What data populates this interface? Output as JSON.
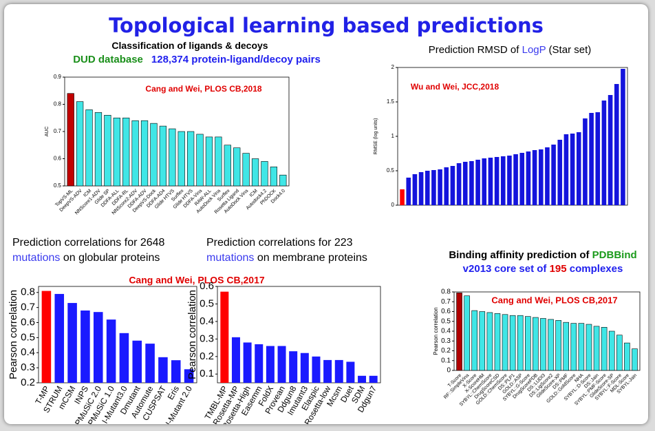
{
  "title": "Topological learning based predictions",
  "chart_data": [
    {
      "type": "bar",
      "title": [
        {
          "text": "Classification of ligands & decoys",
          "color": "#000000"
        }
      ],
      "subtitle": [
        {
          "text": "DUD database",
          "color": "#1a8f1a"
        },
        {
          "text": "128,374 protein-ligand/decoy pairs",
          "color": "#2020ee"
        }
      ],
      "annotation": "Cang and Wei, PLOS CB,2018",
      "ylabel": "AUC",
      "categories": [
        "TopVS-ML",
        "DeepVS-ADV",
        "ICM",
        "NNScore1-ADV",
        "Glide SP",
        "DDFA-ALL",
        "DDFA-RL",
        "NNScore2-ADV",
        "DDFA-ADV",
        "DeepVS-Dock",
        "DDFA-AD4",
        "Glide HTVS",
        "Surflex",
        "Glide HTVS",
        "DDFA-Vina",
        "RAW-ALL",
        "AutoDock Vina",
        "Surflex",
        "Rosetta Ligand",
        "AutoDock Vina",
        "ICM",
        "Autodock4.2",
        "PhDOCK",
        "Dock4.0"
      ],
      "values": [
        0.84,
        0.81,
        0.78,
        0.77,
        0.76,
        0.75,
        0.75,
        0.74,
        0.74,
        0.73,
        0.72,
        0.71,
        0.7,
        0.7,
        0.69,
        0.68,
        0.68,
        0.65,
        0.64,
        0.62,
        0.6,
        0.59,
        0.57,
        0.54
      ],
      "ylim": [
        0.5,
        0.9
      ],
      "yticks": [
        0.5,
        0.6,
        0.7,
        0.8,
        0.9
      ],
      "color": "#40e6e6",
      "first_color": "#c00000",
      "edge_color": "#000000"
    },
    {
      "type": "bar",
      "title": [
        {
          "text": "Prediction RMSD of ",
          "color": "#000000"
        },
        {
          "text": "LogP",
          "color": "#3a3aee"
        },
        {
          "text": " (Star set)",
          "color": "#000000"
        }
      ],
      "annotation": "Wu and Wei, JCC,2018",
      "ylabel": "RMSE (log units)",
      "categories": [
        null,
        null,
        null,
        null,
        null,
        null,
        null,
        null,
        null,
        null,
        null,
        null,
        null,
        null,
        null,
        null,
        null,
        null,
        null,
        null,
        null,
        null,
        null,
        null,
        null,
        null,
        null,
        null,
        null,
        null,
        null,
        null,
        null,
        null,
        null,
        null
      ],
      "values": [
        0.23,
        0.4,
        0.45,
        0.48,
        0.5,
        0.51,
        0.52,
        0.55,
        0.57,
        0.61,
        0.63,
        0.64,
        0.66,
        0.68,
        0.69,
        0.7,
        0.71,
        0.72,
        0.74,
        0.76,
        0.78,
        0.8,
        0.81,
        0.84,
        0.88,
        0.95,
        1.03,
        1.04,
        1.06,
        1.26,
        1.34,
        1.35,
        1.52,
        1.6,
        1.76,
        1.98
      ],
      "ylim": [
        0,
        2
      ],
      "yticks": [
        0,
        0.5,
        1,
        1.5,
        2
      ],
      "color": "#1414dc",
      "first_color": "#ff0000",
      "edge_color": null
    },
    {
      "type": "bar",
      "title": [
        {
          "text": "Prediction correlations for 2648 ",
          "color": "#000000"
        },
        {
          "text": "mutations",
          "color": "#3a3aee"
        },
        {
          "text": " on globular proteins",
          "color": "#000000"
        }
      ],
      "annotation": "Cang and Wei, PLOS CB,2017",
      "ylabel": "Pearson correlation",
      "categories": [
        "T-MP",
        "STRUM",
        "mCSM",
        "INPS",
        "PoPMuSiC 2.0",
        "PoPMuSiC 1.0",
        "I-Mutant3.0",
        "Dmutant",
        "Automute",
        "CUSPSAT",
        "Eris",
        "I-Mutant 2.0"
      ],
      "values": [
        0.81,
        0.79,
        0.73,
        0.68,
        0.67,
        0.62,
        0.53,
        0.48,
        0.46,
        0.37,
        0.35,
        0.29
      ],
      "ylim": [
        0.2,
        0.84
      ],
      "yticks": [
        0.2,
        0.3,
        0.4,
        0.5,
        0.6,
        0.7,
        0.8
      ],
      "color": "#1a1aff",
      "first_color": "#ff0000",
      "edge_color": null
    },
    {
      "type": "bar",
      "title": [
        {
          "text": "Prediction correlations for 223 ",
          "color": "#000000"
        },
        {
          "text": "mutations",
          "color": "#3a3aee"
        },
        {
          "text": " on membrane proteins",
          "color": "#000000"
        }
      ],
      "ylabel": "Pearson correlation",
      "categories": [
        "TMBL-MP",
        "Rosetta-MP",
        "Rosetta-High",
        "Easemm",
        "FoldX",
        "Provean",
        "Ddgun8",
        "Imutant3",
        "Elaspic",
        "Rosetta-low",
        "Mcsm",
        "Duet",
        "SDM",
        "Ddgun7"
      ],
      "values": [
        0.57,
        0.31,
        0.28,
        0.27,
        0.26,
        0.26,
        0.23,
        0.22,
        0.2,
        0.18,
        0.18,
        0.17,
        0.09,
        0.09
      ],
      "ylim": [
        0.05,
        0.6
      ],
      "yticks": [
        0.1,
        0.2,
        0.3,
        0.4,
        0.5,
        0.6
      ],
      "color": "#1a1aff",
      "first_color": "#ff0000",
      "edge_color": null
    },
    {
      "type": "bar",
      "title": [
        {
          "text": "Binding affinity prediction of ",
          "color": "#000000"
        },
        {
          "text": "PDBBind",
          "color": "#1a9a1a"
        },
        {
          "text": " v2013 core set of ",
          "color": "#2020ee"
        },
        {
          "text": "195",
          "color": "#e00000"
        },
        {
          "text": " complexes",
          "color": "#2020ee"
        }
      ],
      "annotation": "Cang and Wei, PLOS CB,2017",
      "ylabel": "Pearson correlation",
      "categories": [
        "T-Score",
        "RF::SimpleVina",
        "X-Score",
        "X-ScoreHM",
        "SYBYL::ChemScore",
        "DrugScoreCSD",
        "GOLD::ChemScore",
        "DS::PLP1",
        "GOLD::ASP",
        "SYBYL::G-Score",
        "DrugScorePDB",
        "DS::LUDI3",
        "DS::LigScore2",
        "GlideScore-XP",
        "DS::PMF",
        "GOLD::GoldScore",
        "NHA",
        "SYBYL::D-Score",
        "DS::Jain",
        "SYBYL::PMF-Score",
        "GlideScore-SP",
        "SYBYL::F-Score",
        "MDL-Score",
        "SYBYL-Jain"
      ],
      "values": [
        0.79,
        0.76,
        0.61,
        0.6,
        0.59,
        0.58,
        0.57,
        0.56,
        0.56,
        0.55,
        0.54,
        0.53,
        0.52,
        0.51,
        0.49,
        0.48,
        0.48,
        0.47,
        0.45,
        0.44,
        0.4,
        0.36,
        0.28,
        0.22
      ],
      "ylim": [
        0,
        0.8
      ],
      "yticks": [
        0,
        0.1,
        0.2,
        0.3,
        0.4,
        0.5,
        0.6,
        0.7,
        0.8
      ],
      "color": "#40e6e6",
      "first_color": "#b00000",
      "edge_color": "#000000"
    }
  ]
}
